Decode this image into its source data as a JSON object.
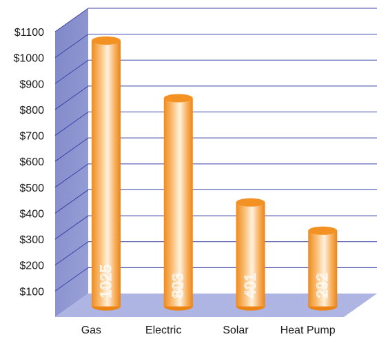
{
  "chart_data": {
    "type": "bar",
    "title": "",
    "xlabel": "",
    "ylabel": "",
    "categories": [
      "Gas",
      "Electric",
      "Solar",
      "Heat Pump"
    ],
    "values": [
      1025,
      803,
      401,
      292
    ],
    "data_labels": [
      "1025",
      "803",
      "401",
      "292"
    ],
    "y_tick_labels": [
      "$100",
      "$200",
      "$300",
      "$400",
      "$500",
      "$600",
      "$700",
      "$800",
      "$900",
      "$1000",
      "$1100"
    ],
    "ylim": [
      0,
      1100
    ],
    "grid": true,
    "legend": "none",
    "style": "3d-cylinder",
    "colors": {
      "bar_edge": "#f08a1a",
      "bar_light": "#fff2e0",
      "bar_top": "#f39222",
      "wall": "#8b93cf",
      "floor": "#aeb5e3",
      "grid": "#3a45a6"
    }
  }
}
